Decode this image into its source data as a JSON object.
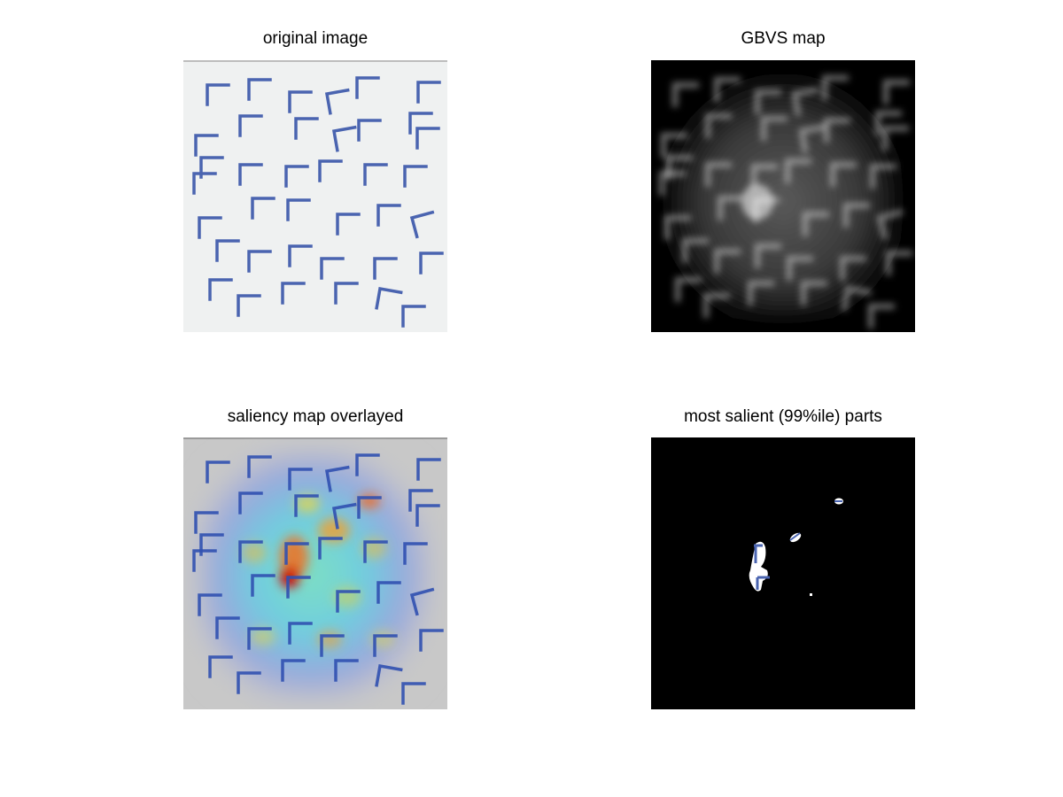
{
  "figure": {
    "panels": [
      {
        "key": "original",
        "title": "original image"
      },
      {
        "key": "gbvs",
        "title": "GBVS map"
      },
      {
        "key": "overlay",
        "title": "saliency map overlayed"
      },
      {
        "key": "salient",
        "title": "most salient (99%ile) parts"
      }
    ]
  },
  "colors": {
    "background": "#ffffff",
    "original_bg": "#eff1f1",
    "glyph": "#4a64b0",
    "gbvs_bg": "#000000",
    "overlay_bg": "#c8c8c8",
    "salient_bg": "#000000"
  },
  "glyphs": {
    "shape": "corner-L",
    "count": 38
  }
}
